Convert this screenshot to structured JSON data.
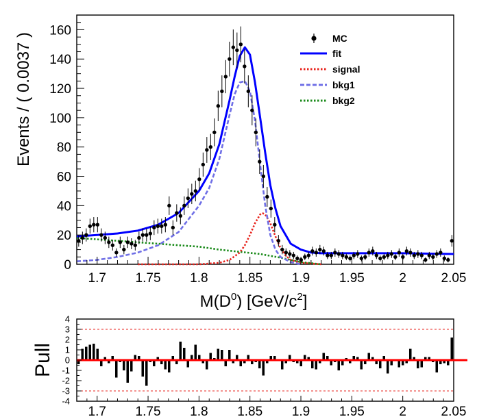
{
  "chart_data": [
    {
      "type": "scatter",
      "panel": "fit",
      "xlabel": "M(D",
      "xlabel_sup": "0",
      "xlabel_unit": ") [GeV/c",
      "xlabel_unit_sup": "2",
      "xlabel_end": "]",
      "ylabel": "Events / ( 0.0037 )",
      "xlim": [
        1.68,
        2.05
      ],
      "ylim": [
        0,
        170
      ],
      "xticks": [
        "1.7",
        "1.75",
        "1.8",
        "1.85",
        "1.9",
        "1.95",
        "2",
        "2.05"
      ],
      "yticks": [
        "0",
        "20",
        "40",
        "60",
        "80",
        "100",
        "120",
        "140",
        "160"
      ],
      "legend_position": "top-right",
      "legend": [
        {
          "label": "MC",
          "style": "marker",
          "color": "#000000"
        },
        {
          "label": "fit",
          "style": "solid",
          "color": "#0000ff"
        },
        {
          "label": "signal",
          "style": "dotted",
          "color": "#e8231c"
        },
        {
          "label": "bkg1",
          "style": "dashed",
          "color": "#6f6fe6"
        },
        {
          "label": "bkg2",
          "style": "dotted",
          "color": "#1a8a1a"
        }
      ],
      "mc": {
        "x": [
          1.6819,
          1.6856,
          1.6893,
          1.693,
          1.6967,
          1.7004,
          1.7041,
          1.7078,
          1.7115,
          1.7152,
          1.7189,
          1.7226,
          1.7263,
          1.73,
          1.7337,
          1.7374,
          1.7411,
          1.7448,
          1.7485,
          1.7522,
          1.7559,
          1.7596,
          1.7633,
          1.767,
          1.7707,
          1.7744,
          1.7781,
          1.7818,
          1.7855,
          1.7892,
          1.7929,
          1.7966,
          1.8003,
          1.804,
          1.8077,
          1.8114,
          1.8151,
          1.8188,
          1.8225,
          1.8262,
          1.8299,
          1.8336,
          1.8373,
          1.841,
          1.8447,
          1.8484,
          1.8521,
          1.8558,
          1.8595,
          1.8632,
          1.8669,
          1.8706,
          1.8743,
          1.878,
          1.8817,
          1.8854,
          1.8891,
          1.8928,
          1.8965,
          1.9002,
          1.9039,
          1.9076,
          1.9113,
          1.915,
          1.9187,
          1.9224,
          1.9261,
          1.9298,
          1.9335,
          1.9372,
          1.9409,
          1.9446,
          1.9483,
          1.952,
          1.9557,
          1.9594,
          1.9631,
          1.9668,
          1.9705,
          1.9742,
          1.9779,
          1.9816,
          1.9853,
          1.989,
          1.9927,
          1.9964,
          2.0001,
          2.0038,
          2.0075,
          2.0112,
          2.0149,
          2.0186,
          2.0223,
          2.026,
          2.0297,
          2.0334,
          2.0371,
          2.0408,
          2.0445,
          2.0482
        ],
        "y": [
          16,
          18,
          20,
          26,
          27,
          27,
          20,
          18,
          15,
          13,
          8,
          15,
          10,
          15,
          14,
          13,
          18,
          20,
          20,
          21,
          25,
          26,
          26,
          27,
          40,
          25,
          35,
          33,
          40,
          45,
          48,
          50,
          58,
          68,
          78,
          80,
          90,
          108,
          118,
          128,
          140,
          148,
          146,
          150,
          135,
          118,
          105,
          90,
          70,
          60,
          46,
          38,
          27,
          16,
          10,
          8,
          7,
          6,
          4,
          3,
          5,
          6,
          9,
          8,
          10,
          9,
          6,
          6,
          8,
          7,
          6,
          5,
          4,
          6,
          7,
          4,
          5,
          8,
          9,
          6,
          4,
          5,
          6,
          7,
          5,
          8,
          5,
          9,
          8,
          6,
          7,
          6,
          3,
          6,
          5,
          7,
          8,
          4,
          3,
          16
        ]
      },
      "fit": {
        "x": [
          1.68,
          1.7,
          1.72,
          1.74,
          1.76,
          1.78,
          1.8,
          1.81,
          1.82,
          1.83,
          1.835,
          1.84,
          1.845,
          1.85,
          1.855,
          1.86,
          1.865,
          1.87,
          1.875,
          1.88,
          1.89,
          1.9,
          1.91,
          1.92,
          1.95,
          2.0,
          2.05
        ],
        "y": [
          19,
          20,
          21,
          23,
          27,
          35,
          50,
          62,
          82,
          112,
          128,
          142,
          148,
          143,
          124,
          100,
          76,
          54,
          38,
          26,
          14,
          10,
          8,
          7.5,
          7.5,
          7.5,
          7
        ]
      },
      "signal": {
        "x": [
          1.74,
          1.8,
          1.82,
          1.83,
          1.84,
          1.845,
          1.85,
          1.855,
          1.86,
          1.862,
          1.865,
          1.87,
          1.875,
          1.88,
          1.885,
          1.89,
          1.9,
          1.92
        ],
        "y": [
          0,
          0,
          1,
          3,
          8,
          13,
          20,
          28,
          34,
          35,
          34,
          28,
          19,
          11,
          6,
          3,
          1,
          0
        ]
      },
      "bkg1": {
        "x": [
          1.68,
          1.7,
          1.72,
          1.74,
          1.76,
          1.78,
          1.8,
          1.81,
          1.82,
          1.83,
          1.835,
          1.84,
          1.845,
          1.85,
          1.855,
          1.86,
          1.865,
          1.87,
          1.875,
          1.88,
          1.89,
          1.9
        ],
        "y": [
          2,
          3,
          5,
          8,
          13,
          22,
          40,
          52,
          72,
          102,
          116,
          124,
          125,
          118,
          98,
          68,
          40,
          20,
          10,
          5,
          1.5,
          0
        ]
      },
      "bkg2": {
        "x": [
          1.68,
          1.7,
          1.72,
          1.74,
          1.76,
          1.78,
          1.8,
          1.82,
          1.84,
          1.86,
          1.88,
          1.9,
          1.92
        ],
        "y": [
          18,
          17,
          16,
          15,
          14,
          13,
          12,
          10,
          8.5,
          7,
          4.5,
          1.5,
          0
        ]
      }
    },
    {
      "type": "bar",
      "panel": "pull",
      "ylabel": "Pull",
      "xlim": [
        1.68,
        2.05
      ],
      "ylim": [
        -4,
        4
      ],
      "xticks": [
        "1.7",
        "1.75",
        "1.8",
        "1.85",
        "1.9",
        "1.95",
        "2",
        "2.05"
      ],
      "yticks": [
        "-4",
        "-3",
        "-2",
        "-1",
        "0",
        "1",
        "2",
        "3",
        "4"
      ],
      "reference_lines": [
        -3,
        3
      ],
      "values": [
        -0.4,
        1.1,
        1.3,
        1.5,
        1.6,
        1.1,
        -0.6,
        0.3,
        -0.3,
        0.4,
        -1.7,
        -0.2,
        -1.0,
        -2.2,
        -1.1,
        0.5,
        0.4,
        -1.6,
        -2.5,
        -0.2,
        -0.6,
        0.3,
        -0.4,
        -0.9,
        -1.2,
        0.4,
        -0.4,
        1.8,
        1.2,
        -0.7,
        0.5,
        1.5,
        0.5,
        -0.3,
        -0.9,
        0.7,
        0.2,
        1.1,
        1.0,
        -0.6,
        1.0,
        -0.3,
        0.5,
        -0.6,
        -0.3,
        0.5,
        -0.4,
        -0.2,
        -0.8,
        -1.5,
        -0.3,
        0.4,
        0.4,
        -0.1,
        -0.9,
        -0.3,
        0.5,
        -0.2,
        -0.3,
        -0.6,
        0.5,
        0.3,
        -0.8,
        -0.9,
        -0.3,
        0.7,
        0.4,
        -0.5,
        -0.2,
        -1.0,
        -0.5,
        0.2,
        -0.3,
        0.4,
        0.3,
        -0.9,
        -0.4,
        0.7,
        0.3,
        -0.4,
        -0.8,
        0.4,
        -1.3,
        -0.5,
        0.1,
        -0.7,
        -0.5,
        -0.3,
        1.1,
        0.3,
        -0.8,
        -0.7,
        0.3,
        0.3,
        -0.2,
        -1.2,
        -0.4,
        -0.3,
        -0.5,
        2.2
      ]
    }
  ]
}
